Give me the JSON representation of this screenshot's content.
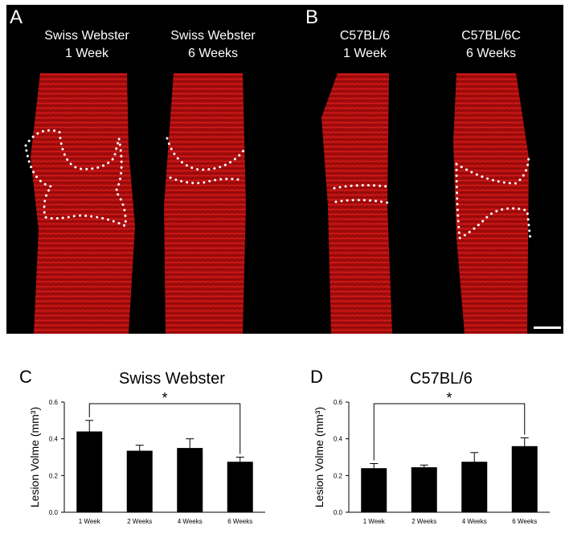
{
  "figure": {
    "panel_labels": {
      "a": "A",
      "b": "B",
      "c": "C",
      "d": "D"
    },
    "micrographs": [
      {
        "line1": "Swiss Webster",
        "line2": "1 Week"
      },
      {
        "line1": "Swiss Webster",
        "line2": "6 Weeks"
      },
      {
        "line1": "C57BL/6",
        "line2": "1 Week"
      },
      {
        "line1": "C57BL/6C",
        "line2": "6 Weeks"
      }
    ],
    "tissue_color": "#d01010",
    "outline_color": "#ffffff"
  },
  "chart_data": [
    {
      "type": "bar",
      "title": "Swiss Webster",
      "ylabel": "Lesion Volme (mm³)",
      "xlabel": "",
      "categories": [
        "1 Week",
        "2 Weeks",
        "4 Weeks",
        "6 Weeks"
      ],
      "values": [
        0.44,
        0.335,
        0.35,
        0.275
      ],
      "errors": [
        0.06,
        0.03,
        0.05,
        0.025
      ],
      "ylim": [
        0,
        0.6
      ],
      "yticks": [
        "0.0",
        "0.2",
        "0.4",
        "0.6"
      ],
      "significance": {
        "from": 0,
        "to": 3,
        "label": "*"
      },
      "bar_color": "#000000",
      "grid": false
    },
    {
      "type": "bar",
      "title": "C57BL/6",
      "ylabel": "Lesion Volme (mm³)",
      "xlabel": "",
      "categories": [
        "1 Week",
        "2 Weeks",
        "4 Weeks",
        "6 Weeks"
      ],
      "values": [
        0.24,
        0.245,
        0.275,
        0.36
      ],
      "errors": [
        0.025,
        0.012,
        0.05,
        0.045
      ],
      "ylim": [
        0,
        0.6
      ],
      "yticks": [
        "0.0",
        "0.2",
        "0.4",
        "0.6"
      ],
      "significance": {
        "from": 0,
        "to": 3,
        "label": "*"
      },
      "bar_color": "#000000",
      "grid": false
    }
  ]
}
